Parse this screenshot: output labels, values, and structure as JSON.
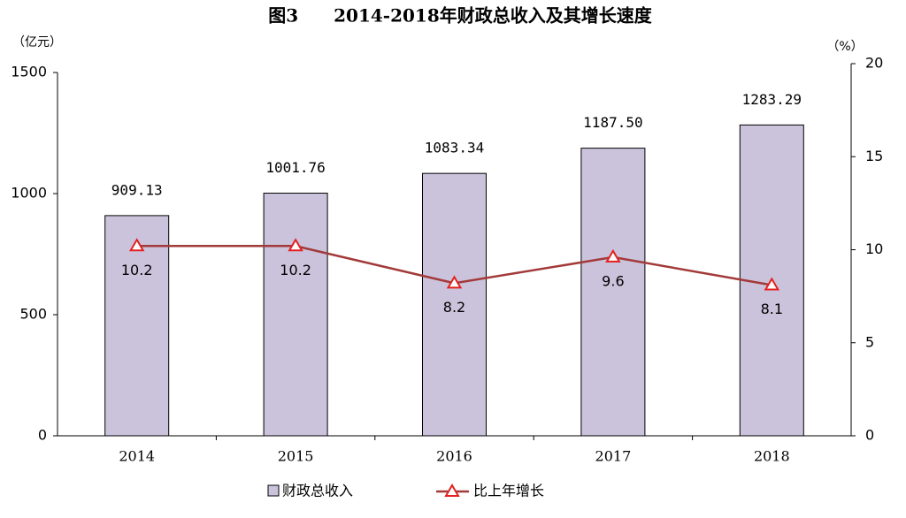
{
  "chart_data": {
    "type": "bar",
    "title": "图3　　2014-2018年财政总收入及其增长速度",
    "y_label": "（亿元）",
    "y2_label": "（%）",
    "categories": [
      "2014",
      "2015",
      "2016",
      "2017",
      "2018"
    ],
    "series": [
      {
        "name": "财政总收入",
        "type": "bar",
        "color": "#cbc3dc",
        "values": [
          909.13,
          1001.76,
          1083.34,
          1187.5,
          1283.29
        ],
        "value_labels": [
          "909.13",
          "1001.76",
          "1083.34",
          "1187.50",
          "1283.29"
        ]
      },
      {
        "name": "比上年增长",
        "type": "line",
        "axis": "y2",
        "color": "#a33a3a",
        "marker_color": "#e3211f",
        "values": [
          10.2,
          10.2,
          8.2,
          9.6,
          8.1
        ]
      }
    ],
    "ylim": [
      0,
      1500
    ],
    "yticks": [
      0,
      500,
      1000,
      1500
    ],
    "y2lim": [
      0,
      20
    ],
    "y2ticks": [
      0,
      5,
      10,
      15,
      20
    ]
  }
}
